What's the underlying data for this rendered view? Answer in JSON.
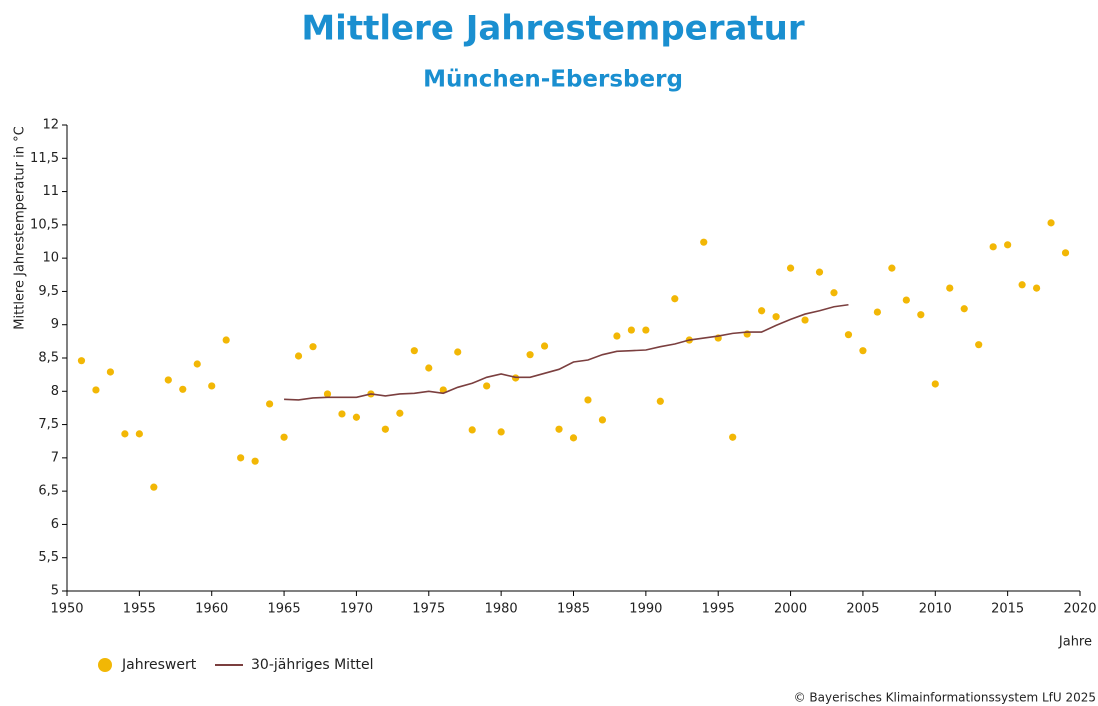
{
  "chart_data": {
    "type": "scatter",
    "title": "Mittlere Jahrestemperatur",
    "subtitle": "München-Ebersberg",
    "y_label": "Mittlere Jahrestemperatur in °C",
    "x_label": "Jahre",
    "source": "© Bayerisches Klimainformationssystem LfU 2025",
    "x": [
      1951,
      1952,
      1953,
      1954,
      1955,
      1956,
      1957,
      1958,
      1959,
      1960,
      1961,
      1962,
      1963,
      1964,
      1965,
      1966,
      1967,
      1968,
      1969,
      1970,
      1971,
      1972,
      1973,
      1974,
      1975,
      1976,
      1977,
      1978,
      1979,
      1980,
      1981,
      1982,
      1983,
      1984,
      1985,
      1986,
      1987,
      1988,
      1989,
      1990,
      1991,
      1992,
      1993,
      1994,
      1995,
      1996,
      1997,
      1998,
      1999,
      2000,
      2001,
      2002,
      2003,
      2004,
      2005,
      2006,
      2007,
      2008,
      2009,
      2010,
      2011,
      2012,
      2013,
      2014,
      2015,
      2016,
      2017,
      2018,
      2019
    ],
    "series": [
      {
        "name": "Jahreswert",
        "type": "scatter",
        "color": "#f2b705",
        "values": [
          8.46,
          8.02,
          8.29,
          7.36,
          7.36,
          6.56,
          8.17,
          8.03,
          8.41,
          8.08,
          8.77,
          7.0,
          6.95,
          7.81,
          7.31,
          8.53,
          8.67,
          7.96,
          7.66,
          7.61,
          7.96,
          7.43,
          7.67,
          8.61,
          8.35,
          8.02,
          8.59,
          7.42,
          8.08,
          7.39,
          8.2,
          8.55,
          8.68,
          7.43,
          7.3,
          7.87,
          7.57,
          8.83,
          8.92,
          8.92,
          7.85,
          9.39,
          8.77,
          10.24,
          8.8,
          7.31,
          8.86,
          9.21,
          9.12,
          9.85,
          9.07,
          9.79,
          9.48,
          8.85,
          8.61,
          9.19,
          9.85,
          9.37,
          9.15,
          8.11,
          9.55,
          9.24,
          8.7,
          10.17,
          10.2,
          9.6,
          9.55,
          10.53,
          10.08
        ]
      },
      {
        "name": "30-jähriges Mittel",
        "type": "line",
        "color": "#7b3f3f",
        "values": [
          null,
          null,
          null,
          null,
          null,
          null,
          null,
          null,
          null,
          null,
          null,
          null,
          null,
          null,
          7.88,
          7.87,
          7.9,
          7.91,
          7.91,
          7.91,
          7.96,
          7.93,
          7.96,
          7.97,
          8.0,
          7.97,
          8.06,
          8.12,
          8.21,
          8.26,
          8.21,
          8.21,
          8.27,
          8.33,
          8.44,
          8.47,
          8.55,
          8.6,
          8.61,
          8.62,
          8.67,
          8.71,
          8.77,
          8.8,
          8.83,
          8.87,
          8.89,
          8.89,
          8.99,
          9.08,
          9.16,
          9.21,
          9.27,
          9.3,
          null,
          null,
          null,
          null,
          null,
          null,
          null,
          null,
          null,
          null,
          null,
          null,
          null,
          null,
          null
        ]
      }
    ],
    "xlim": [
      1950,
      2020
    ],
    "xticks": [
      1950,
      1955,
      1960,
      1965,
      1970,
      1975,
      1980,
      1985,
      1990,
      1995,
      2000,
      2005,
      2010,
      2015,
      2020
    ],
    "ylim": [
      5,
      12
    ],
    "yticks": [
      5,
      {
        "value": 5.5,
        "label": "5,5"
      },
      6,
      {
        "value": 6.5,
        "label": "6,5"
      },
      7,
      {
        "value": 7.5,
        "label": "7,5"
      },
      8,
      {
        "value": 8.5,
        "label": "8,5"
      },
      9,
      {
        "value": 9.5,
        "label": "9,5"
      },
      10,
      {
        "value": 10.5,
        "label": "10,5"
      },
      11,
      {
        "value": 11.5,
        "label": "11,5"
      },
      12
    ],
    "grid": false,
    "legend": "bottom-left"
  }
}
